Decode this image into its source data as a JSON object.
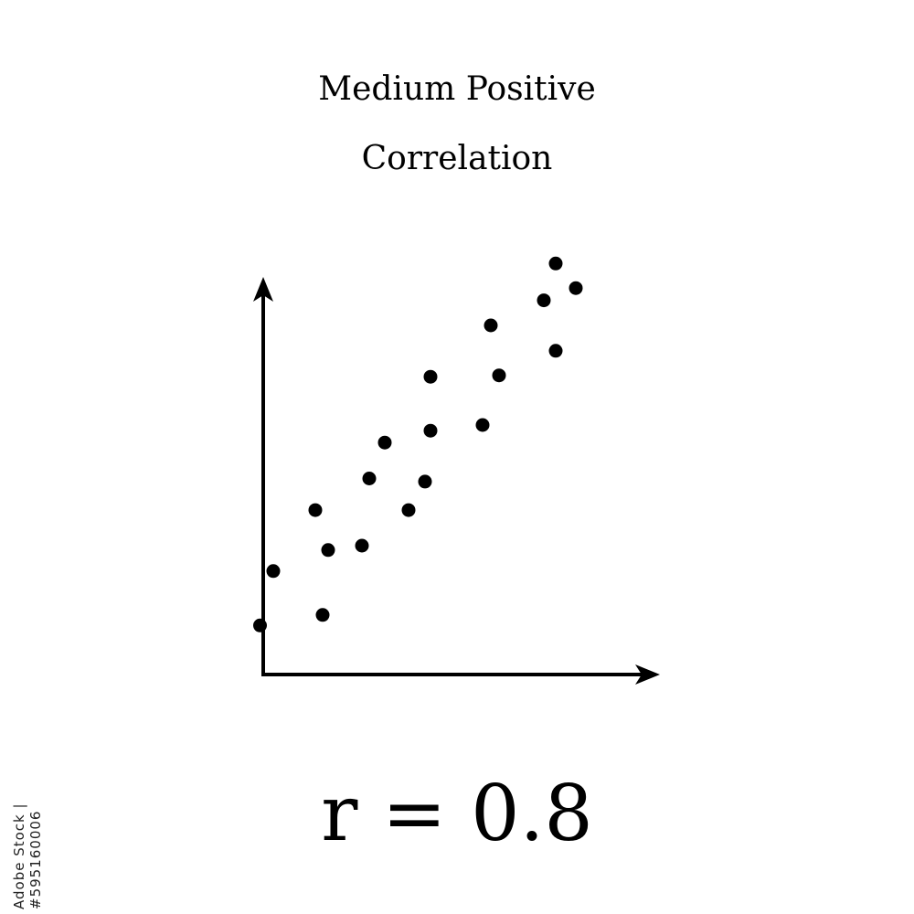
{
  "chart_data": {
    "type": "scatter",
    "title_line_1": "Medium Positive",
    "title_line_2": "Correlation",
    "annotation": "r = 0.8",
    "xlabel": "",
    "ylabel": "",
    "xlim": [
      0,
      1
    ],
    "ylim": [
      0,
      1
    ],
    "grid": false,
    "colors": {
      "axis": "#000000",
      "point": "#000000"
    },
    "points": [
      {
        "x": 0.069,
        "y": 0.116
      },
      {
        "x": 0.098,
        "y": 0.24
      },
      {
        "x": 0.206,
        "y": 0.14
      },
      {
        "x": 0.19,
        "y": 0.379
      },
      {
        "x": 0.218,
        "y": 0.288
      },
      {
        "x": 0.292,
        "y": 0.298
      },
      {
        "x": 0.308,
        "y": 0.451
      },
      {
        "x": 0.342,
        "y": 0.533
      },
      {
        "x": 0.394,
        "y": 0.379
      },
      {
        "x": 0.43,
        "y": 0.444
      },
      {
        "x": 0.442,
        "y": 0.56
      },
      {
        "x": 0.442,
        "y": 0.683
      },
      {
        "x": 0.556,
        "y": 0.573
      },
      {
        "x": 0.574,
        "y": 0.8
      },
      {
        "x": 0.592,
        "y": 0.686
      },
      {
        "x": 0.69,
        "y": 0.857
      },
      {
        "x": 0.716,
        "y": 0.742
      },
      {
        "x": 0.716,
        "y": 0.941
      },
      {
        "x": 0.76,
        "y": 0.885
      }
    ]
  },
  "side_text": "Adobe Stock | #595160006"
}
